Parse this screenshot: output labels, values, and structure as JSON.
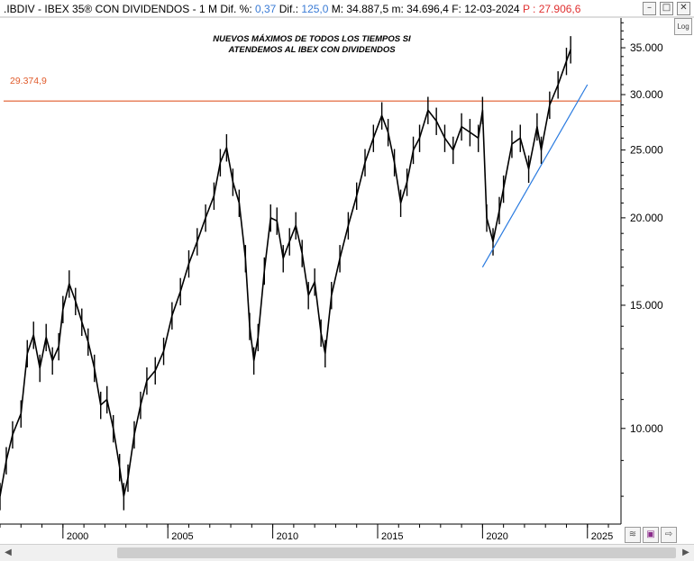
{
  "header": {
    "symbol": ".IBDIV",
    "name": "IBEX 35® CON DIVIDENDOS",
    "period": "1 M",
    "dif_pct_label": "Dif. %:",
    "dif_pct_value": "0,37",
    "dif_label": "Dif.:",
    "dif_value": "125,0",
    "max_label": "M: 34.887,5",
    "min_label": "m: 34.696,4",
    "date_label": "F: 12-03-2024",
    "p_label": "P : 27.906,6"
  },
  "window_buttons": [
    "minimize",
    "maximize",
    "close"
  ],
  "log_button_label": "Log",
  "annotation": "NUEVOS MÁXIMOS DE TODOS LOS TIEMPOS SI ATENDEMOS AL IBEX CON DIVIDENDOS",
  "horizontal_line_label": "29.374,9",
  "colors": {
    "price": "#000000",
    "resistance_line": "#e05a2a",
    "trend_line": "#2a7be0",
    "dif_pct": "#3a7bd5",
    "p_value": "#e03030"
  },
  "chart_data": {
    "type": "line",
    "scale": "log",
    "y_ticks": [
      {
        "value": 35000,
        "label": "35.000"
      },
      {
        "value": 30000,
        "label": "30.000"
      },
      {
        "value": 25000,
        "label": "25.000"
      },
      {
        "value": 20000,
        "label": "20.000"
      },
      {
        "value": 15000,
        "label": "15.000"
      },
      {
        "value": 10000,
        "label": "10.000"
      }
    ],
    "x_ticks": [
      {
        "value": 2000,
        "label": "2000"
      },
      {
        "value": 2005,
        "label": "2005"
      },
      {
        "value": 2010,
        "label": "2010"
      },
      {
        "value": 2015,
        "label": "2015"
      },
      {
        "value": 2020,
        "label": "2020"
      },
      {
        "value": 2025,
        "label": "2025"
      }
    ],
    "xlim": [
      1997.0,
      2026.6
    ],
    "ylim": [
      7300,
      38600
    ],
    "horizontal_level": 29374.9,
    "trend_line": {
      "x": [
        2020.0,
        2025.0
      ],
      "y": [
        17000,
        31000
      ]
    },
    "series": [
      {
        "x": [
          1997.0,
          1997.3,
          1997.6,
          1998.0,
          1998.3,
          1998.6,
          1998.9,
          1999.2,
          1999.5,
          1999.8,
          2000.0,
          2000.3,
          2000.6,
          2000.9,
          2001.2,
          2001.5,
          2001.8,
          2002.1,
          2002.4,
          2002.7,
          2002.9,
          2003.1,
          2003.4,
          2003.7,
          2004.0,
          2004.4,
          2004.8,
          2005.2,
          2005.6,
          2006.0,
          2006.4,
          2006.8,
          2007.2,
          2007.5,
          2007.8,
          2008.1,
          2008.4,
          2008.7,
          2008.9,
          2009.1,
          2009.3,
          2009.6,
          2009.9,
          2010.2,
          2010.5,
          2010.8,
          2011.1,
          2011.4,
          2011.7,
          2012.0,
          2012.3,
          2012.5,
          2012.8,
          2013.2,
          2013.6,
          2014.0,
          2014.4,
          2014.8,
          2015.2,
          2015.5,
          2015.8,
          2016.1,
          2016.4,
          2016.7,
          2017.0,
          2017.4,
          2017.8,
          2018.2,
          2018.6,
          2019.0,
          2019.4,
          2019.8,
          2020.0,
          2020.2,
          2020.5,
          2020.8,
          2021.0,
          2021.4,
          2021.8,
          2022.2,
          2022.6,
          2022.8,
          2023.2,
          2023.6,
          2024.0,
          2024.2
        ],
        "values": [
          8000,
          9000,
          9800,
          10500,
          12800,
          13600,
          12200,
          13500,
          12500,
          13100,
          14800,
          16100,
          15200,
          14200,
          13300,
          12200,
          10800,
          11000,
          10000,
          8800,
          8000,
          8500,
          9800,
          10800,
          11700,
          12100,
          12900,
          14500,
          15700,
          17200,
          18500,
          20000,
          21500,
          24000,
          25200,
          22500,
          21000,
          17500,
          14000,
          12500,
          13500,
          16800,
          20000,
          19800,
          17500,
          18500,
          19500,
          17800,
          15500,
          16200,
          13700,
          12800,
          15500,
          17500,
          19500,
          21500,
          24000,
          26000,
          28000,
          26500,
          24000,
          21000,
          22500,
          25000,
          26000,
          28500,
          27500,
          26000,
          25000,
          27000,
          26500,
          26000,
          28500,
          20000,
          18500,
          20500,
          22000,
          25500,
          26000,
          23500,
          27000,
          25000,
          29000,
          31000,
          33500,
          34800
        ]
      }
    ]
  }
}
